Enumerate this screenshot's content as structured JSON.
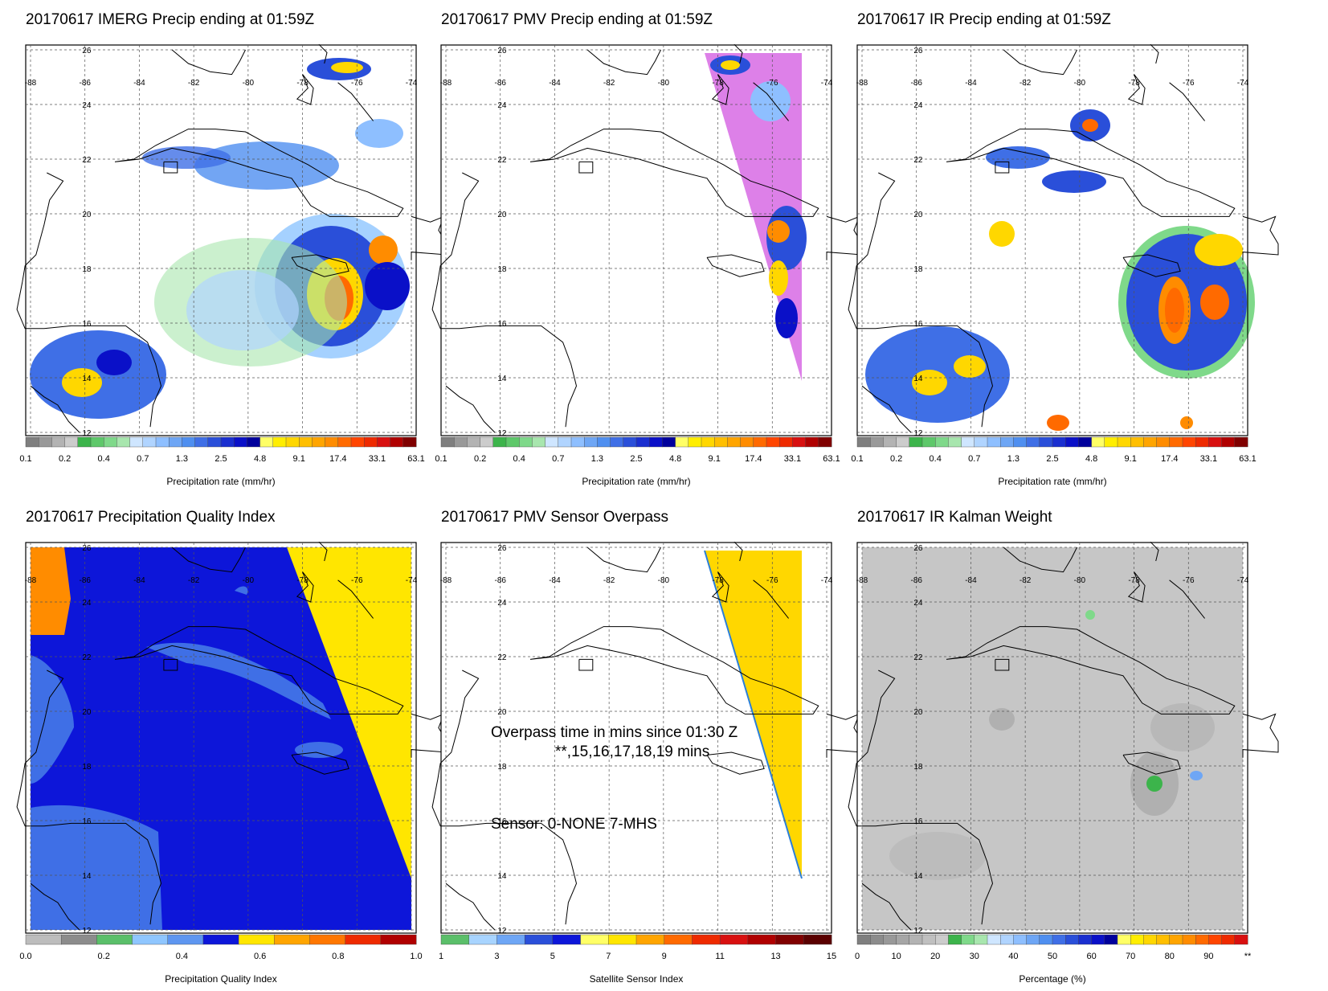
{
  "axes": {
    "lon_ticks": [
      "-88",
      "-86",
      "-84",
      "-82",
      "-80",
      "-78",
      "-76",
      "-74"
    ],
    "lat_ticks": [
      "26",
      "24",
      "22",
      "20",
      "18",
      "16",
      "14",
      "12"
    ],
    "lon_range": [
      -88,
      -74
    ],
    "lat_range": [
      12,
      26
    ]
  },
  "colorbars": {
    "precip": {
      "labels": [
        "0.1",
        "0.2",
        "0.4",
        "0.7",
        "1.3",
        "2.5",
        "4.8",
        "9.1",
        "17.4",
        "33.1",
        "63.1"
      ],
      "title": "Precipitation rate (mm/hr)",
      "colors": [
        "#7f7f7f",
        "#999999",
        "#b3b3b3",
        "#cccccc",
        "#3cb44b",
        "#5ec86a",
        "#7fd98a",
        "#a8e6ae",
        "#cfe6ff",
        "#b0d4ff",
        "#8ebfff",
        "#6ea6f5",
        "#4f8ff0",
        "#3f6fe6",
        "#2a4fd9",
        "#1a2fd0",
        "#0a10c8",
        "#00009c",
        "#ffff66",
        "#ffee00",
        "#ffd700",
        "#ffbf00",
        "#ffa500",
        "#ff8c00",
        "#ff6a00",
        "#ff4500",
        "#ee2a00",
        "#d81010",
        "#b00000",
        "#800000"
      ]
    },
    "quality": {
      "labels": [
        "0.0",
        "0.2",
        "0.4",
        "0.6",
        "0.8",
        "1.0"
      ],
      "title": "Precipitation Quality Index",
      "colors": [
        "#bdbdbd",
        "#8c8c8c",
        "#5bbf6a",
        "#8fc6ff",
        "#5e96f0",
        "#0d16d9",
        "#ffe600",
        "#ffa500",
        "#ff7700",
        "#ee2a00",
        "#b00000"
      ]
    },
    "sensor": {
      "labels": [
        "1",
        "3",
        "5",
        "7",
        "9",
        "11",
        "13",
        "15"
      ],
      "title": "Satellite Sensor Index",
      "colors": [
        "#5bbf6a",
        "#a8d4ff",
        "#6ea6f5",
        "#2a4fd9",
        "#0d16d9",
        "#ffff66",
        "#ffe600",
        "#ffa500",
        "#ff6a00",
        "#ee2a00",
        "#d81010",
        "#b00000",
        "#800000",
        "#5a0000"
      ]
    },
    "percent": {
      "labels": [
        "0",
        "10",
        "20",
        "30",
        "40",
        "50",
        "60",
        "70",
        "80",
        "90",
        "**"
      ],
      "title": "Percentage (%)",
      "colors": [
        "#7f7f7f",
        "#8c8c8c",
        "#999999",
        "#a6a6a6",
        "#b3b3b3",
        "#c0c0c0",
        "#cccccc",
        "#3cb44b",
        "#7fd98a",
        "#a8e6ae",
        "#cfe6ff",
        "#b0d4ff",
        "#8ebfff",
        "#6ea6f5",
        "#4f8ff0",
        "#3f6fe6",
        "#2a4fd9",
        "#1a2fd0",
        "#0a10c8",
        "#00009c",
        "#ffff66",
        "#ffee00",
        "#ffd700",
        "#ffbf00",
        "#ffa500",
        "#ff8c00",
        "#ff6a00",
        "#ff4500",
        "#ee2a00",
        "#d81010"
      ]
    }
  },
  "panels": [
    {
      "id": "imerg",
      "title": "20170617 IMERG Precip ending at 01:59Z",
      "colorbar": "precip"
    },
    {
      "id": "pmv",
      "title": "20170617 PMV Precip ending at 01:59Z",
      "colorbar": "precip"
    },
    {
      "id": "ir",
      "title": "20170617 IR Precip ending at 01:59Z",
      "colorbar": "precip"
    },
    {
      "id": "quality",
      "title": "20170617 Precipitation Quality Index",
      "colorbar": "quality"
    },
    {
      "id": "overpass",
      "title": "20170617 PMV Sensor Overpass",
      "colorbar": "sensor"
    },
    {
      "id": "kalman",
      "title": "20170617 IR Kalman Weight",
      "colorbar": "percent"
    }
  ],
  "overpass_notes": {
    "line1": "Overpass time in mins since 01:30 Z",
    "line2": "**,15,16,17,18,19 mins",
    "line3": "Sensor:   0-NONE  7-MHS"
  }
}
